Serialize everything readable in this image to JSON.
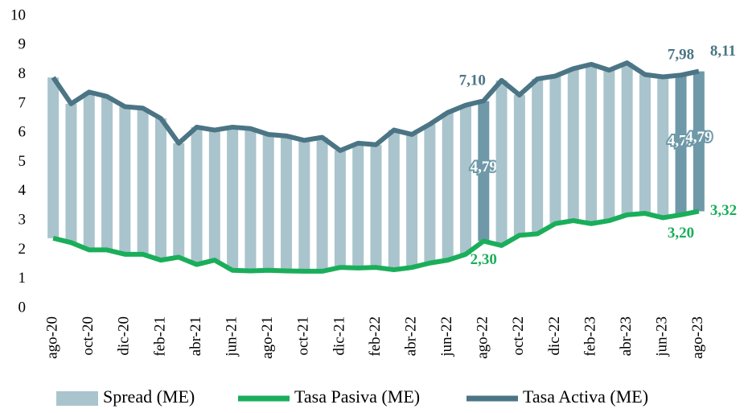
{
  "chart_data": {
    "type": "bar-line",
    "categories": [
      "ago-20",
      null,
      "oct-20",
      null,
      "dic-20",
      null,
      "feb-21",
      null,
      "abr-21",
      null,
      "jun-21",
      null,
      "ago-21",
      null,
      "oct-21",
      null,
      "dic-21",
      null,
      "feb-22",
      null,
      "abr-22",
      null,
      "jun-22",
      null,
      "ago-22",
      null,
      "oct-22",
      null,
      "dic-22",
      null,
      "feb-23",
      null,
      "abr-23",
      null,
      "jun-23",
      null,
      "ago-23"
    ],
    "series": [
      {
        "name": "Spread (ME)",
        "kind": "bar",
        "stack_on": 1,
        "color": "#a9c4cc",
        "highlight_color": "#6f99a8",
        "values": [
          5.5,
          4.75,
          5.4,
          5.25,
          5.05,
          5.0,
          4.85,
          3.9,
          4.7,
          4.45,
          4.9,
          4.87,
          4.65,
          4.62,
          4.48,
          4.58,
          4.0,
          4.27,
          4.2,
          4.78,
          4.55,
          4.75,
          5.05,
          5.1,
          4.79,
          5.65,
          4.8,
          5.3,
          5.05,
          5.2,
          5.45,
          5.15,
          5.2,
          4.75,
          4.82,
          4.77,
          4.79
        ],
        "value_labels": [
          null,
          null,
          null,
          null,
          null,
          null,
          null,
          null,
          null,
          null,
          null,
          null,
          null,
          null,
          null,
          null,
          null,
          null,
          null,
          null,
          null,
          null,
          null,
          null,
          "4,79",
          null,
          null,
          null,
          null,
          null,
          null,
          null,
          null,
          null,
          null,
          "4,77",
          "4,79"
        ]
      },
      {
        "name": "Tasa Pasiva (ME)",
        "kind": "line",
        "color": "#1aae5a",
        "values": [
          2.4,
          2.25,
          2.0,
          2.0,
          1.85,
          1.85,
          1.65,
          1.75,
          1.5,
          1.65,
          1.3,
          1.28,
          1.3,
          1.28,
          1.27,
          1.27,
          1.4,
          1.38,
          1.4,
          1.32,
          1.4,
          1.55,
          1.65,
          1.85,
          2.3,
          2.15,
          2.5,
          2.55,
          2.9,
          3.0,
          2.9,
          3.0,
          3.2,
          3.25,
          3.1,
          3.2,
          3.32
        ],
        "value_labels": [
          null,
          null,
          null,
          null,
          null,
          null,
          null,
          null,
          null,
          null,
          null,
          null,
          null,
          null,
          null,
          null,
          null,
          null,
          null,
          null,
          null,
          null,
          null,
          null,
          "2,30",
          null,
          null,
          null,
          null,
          null,
          null,
          null,
          null,
          null,
          null,
          "3,20",
          "3,32"
        ]
      },
      {
        "name": "Tasa Activa (ME)",
        "kind": "line",
        "color": "#4b7585",
        "values": [
          7.9,
          7.0,
          7.4,
          7.25,
          6.9,
          6.85,
          6.5,
          5.65,
          6.2,
          6.1,
          6.2,
          6.15,
          5.95,
          5.9,
          5.75,
          5.85,
          5.4,
          5.65,
          5.6,
          6.1,
          5.95,
          6.3,
          6.7,
          6.95,
          7.1,
          7.8,
          7.3,
          7.85,
          7.95,
          8.2,
          8.35,
          8.15,
          8.4,
          8.0,
          7.92,
          7.98,
          8.11
        ],
        "value_labels": [
          null,
          null,
          null,
          null,
          null,
          null,
          null,
          null,
          null,
          null,
          null,
          null,
          null,
          null,
          null,
          null,
          null,
          null,
          null,
          null,
          null,
          null,
          null,
          null,
          "7,10",
          null,
          null,
          null,
          null,
          null,
          null,
          null,
          null,
          null,
          null,
          "7,98",
          "8,11"
        ]
      }
    ],
    "ylim": [
      0,
      10
    ],
    "yticks": [
      0,
      1,
      2,
      3,
      4,
      5,
      6,
      7,
      8,
      9,
      10
    ],
    "grid": false,
    "legend": "bottom"
  }
}
